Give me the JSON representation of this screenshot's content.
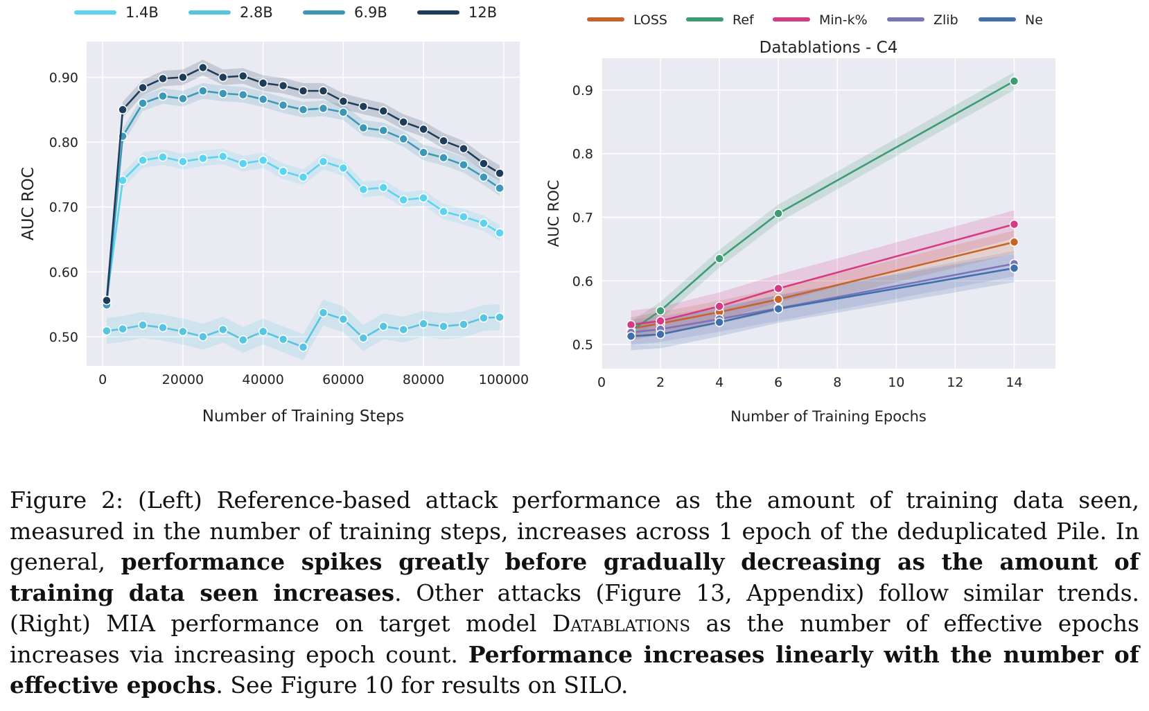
{
  "chart_data": [
    {
      "type": "line",
      "title": "",
      "xlabel": "Number of Training Steps",
      "ylabel": "AUC ROC",
      "xlim": [
        -4000,
        104000
      ],
      "ylim": [
        0.455,
        0.955
      ],
      "xticks": [
        0,
        20000,
        40000,
        60000,
        80000,
        100000
      ],
      "yticks": [
        0.5,
        0.6,
        0.7,
        0.8,
        0.9
      ],
      "ytick_labels": [
        "0.50",
        "0.60",
        "0.70",
        "0.80",
        "0.90"
      ],
      "grid": true,
      "legend_position": "top",
      "x": [
        1000,
        5000,
        10000,
        15000,
        20000,
        25000,
        30000,
        35000,
        40000,
        45000,
        50000,
        55000,
        60000,
        65000,
        70000,
        75000,
        80000,
        85000,
        90000,
        95000,
        99000
      ],
      "series": [
        {
          "name": "1.4B",
          "color": "#5cd3ef",
          "band": 0.012,
          "values": [
            0.557,
            0.741,
            0.772,
            0.777,
            0.77,
            0.775,
            0.778,
            0.767,
            0.772,
            0.755,
            0.746,
            0.77,
            0.76,
            0.727,
            0.73,
            0.711,
            0.714,
            0.693,
            0.685,
            0.675,
            0.66
          ]
        },
        {
          "name": "2.8B",
          "color": "#57c5e0",
          "band": 0.02,
          "values": [
            0.509,
            0.512,
            0.518,
            0.514,
            0.508,
            0.5,
            0.511,
            0.495,
            0.508,
            0.496,
            0.484,
            0.537,
            0.527,
            0.498,
            0.516,
            0.511,
            0.52,
            0.516,
            0.519,
            0.529,
            0.53
          ]
        },
        {
          "name": "6.9B",
          "color": "#3d98b7",
          "band": 0.012,
          "values": [
            0.549,
            0.809,
            0.86,
            0.871,
            0.867,
            0.879,
            0.875,
            0.873,
            0.866,
            0.857,
            0.85,
            0.852,
            0.846,
            0.822,
            0.818,
            0.805,
            0.784,
            0.776,
            0.765,
            0.746,
            0.729
          ]
        },
        {
          "name": "12B",
          "color": "#1e3d5a",
          "band": 0.012,
          "values": [
            0.556,
            0.85,
            0.884,
            0.898,
            0.9,
            0.915,
            0.9,
            0.902,
            0.891,
            0.887,
            0.879,
            0.879,
            0.863,
            0.855,
            0.848,
            0.831,
            0.82,
            0.802,
            0.79,
            0.767,
            0.752
          ]
        }
      ]
    },
    {
      "type": "line",
      "title": "Datablations - C4",
      "xlabel": "Number of Training Epochs",
      "ylabel": "AUC ROC",
      "xlim": [
        0,
        15.4
      ],
      "ylim": [
        0.462,
        0.95
      ],
      "xticks": [
        0,
        2,
        4,
        6,
        8,
        10,
        12,
        14
      ],
      "yticks": [
        0.5,
        0.6,
        0.7,
        0.8,
        0.9
      ],
      "ytick_labels": [
        "0.5",
        "0.6",
        "0.7",
        "0.8",
        "0.9"
      ],
      "grid": true,
      "legend_position": "top",
      "x": [
        1,
        2,
        4,
        6,
        14
      ],
      "series": [
        {
          "name": "LOSS",
          "color": "#c8642a",
          "band": 0.018,
          "values": [
            0.525,
            0.533,
            0.551,
            0.571,
            0.661
          ]
        },
        {
          "name": "Ref",
          "color": "#3f9b74",
          "band": 0.014,
          "values": [
            0.522,
            0.553,
            0.635,
            0.706,
            0.914
          ]
        },
        {
          "name": "Min-k%",
          "color": "#d63a83",
          "band": 0.022,
          "values": [
            0.531,
            0.537,
            0.56,
            0.588,
            0.689
          ]
        },
        {
          "name": "Zlib",
          "color": "#7a75b8",
          "band": 0.02,
          "values": [
            0.519,
            0.524,
            0.54,
            0.557,
            0.627
          ]
        },
        {
          "name": "Ne",
          "color": "#3f70ad",
          "band": 0.022,
          "values": [
            0.513,
            0.516,
            0.535,
            0.556,
            0.62
          ]
        }
      ]
    }
  ],
  "caption": {
    "label": "Figure 2: ",
    "p1": "(Left) Reference-based attack performance as the amount of training data seen, measured in the number of training steps, increases across 1 epoch of the deduplicated Pile. In general, ",
    "b1": "performance spikes greatly before gradually decreasing as the amount of training data seen increases",
    "p2": ". Other attacks (Figure 13, Appendix) follow similar trends. (Right) MIA performance on target model ",
    "smallcaps": "Datablations",
    "p3": " as the number of effective epochs increases via increasing epoch count. ",
    "b2": "Performance increases linearly with the number of effective epochs",
    "p4": ". See Figure 10 for results on SILO."
  }
}
